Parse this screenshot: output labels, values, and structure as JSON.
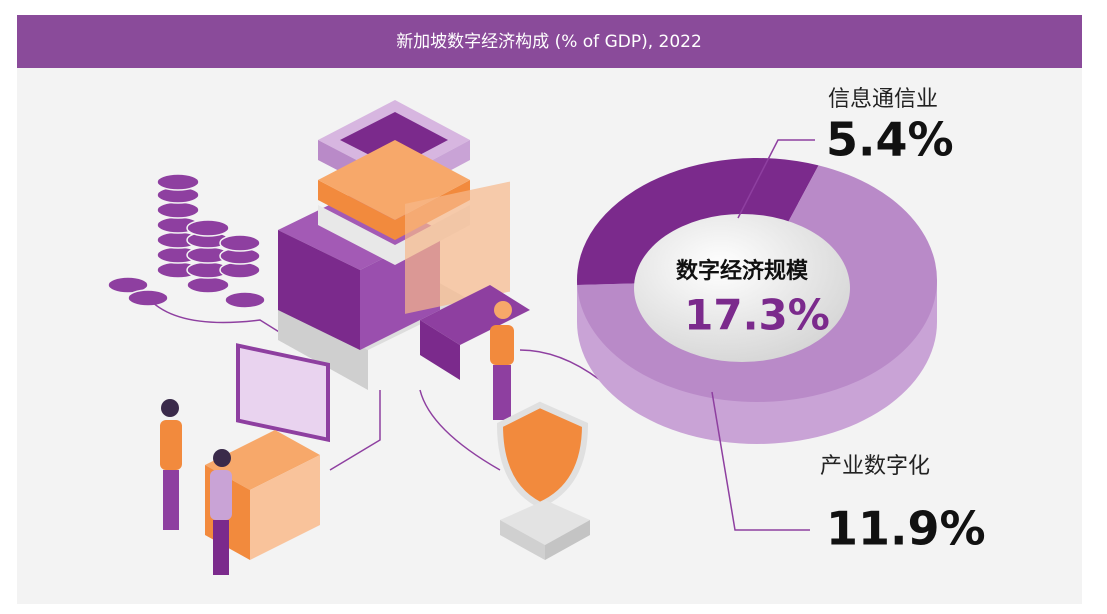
{
  "chart_data": {
    "type": "pie",
    "title": "新加坡数字经济构成 (% of GDP), 2022",
    "categories": [
      "信息通信业",
      "产业数字化"
    ],
    "values": [
      5.4,
      11.9
    ],
    "value_labels": [
      "5.4%",
      "11.9%"
    ],
    "colors": [
      "#7b2a8c",
      "#b98ac8"
    ],
    "center_title": "数字经济规模",
    "total": 17.3,
    "total_label": "17.3%"
  }
}
